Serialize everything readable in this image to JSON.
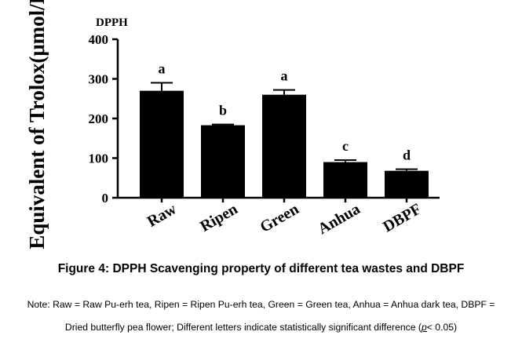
{
  "chart_data": {
    "type": "bar",
    "title": "DPPH",
    "ylabel": "Equivalent of Trolox(μmol/L)",
    "xlabel": "",
    "ylim": [
      0,
      400
    ],
    "yticks": [
      0,
      100,
      200,
      300,
      400
    ],
    "grid": false,
    "categories": [
      "Raw",
      "Ripen",
      "Green",
      "Anhua",
      "DBPF"
    ],
    "values": [
      270,
      183,
      260,
      90,
      68
    ],
    "errors": [
      20,
      2,
      12,
      5,
      4
    ],
    "significance_letters": [
      "a",
      "b",
      "a",
      "c",
      "d"
    ],
    "bar_color": "#000000"
  },
  "caption": {
    "figure_title": "Figure 4: DPPH Scavenging property of different tea wastes and DBPF",
    "note_line1": "Note: Raw = Raw Pu-erh tea, Ripen = Ripen Pu-erh tea, Green = Green tea, Anhua = Anhua dark tea, DBPF =",
    "note_line2_prefix": "Dried butterfly pea flower; Different letters indicate statistically significant difference (",
    "note_line2_p": "p",
    "note_line2_suffix": "< 0.05)"
  }
}
